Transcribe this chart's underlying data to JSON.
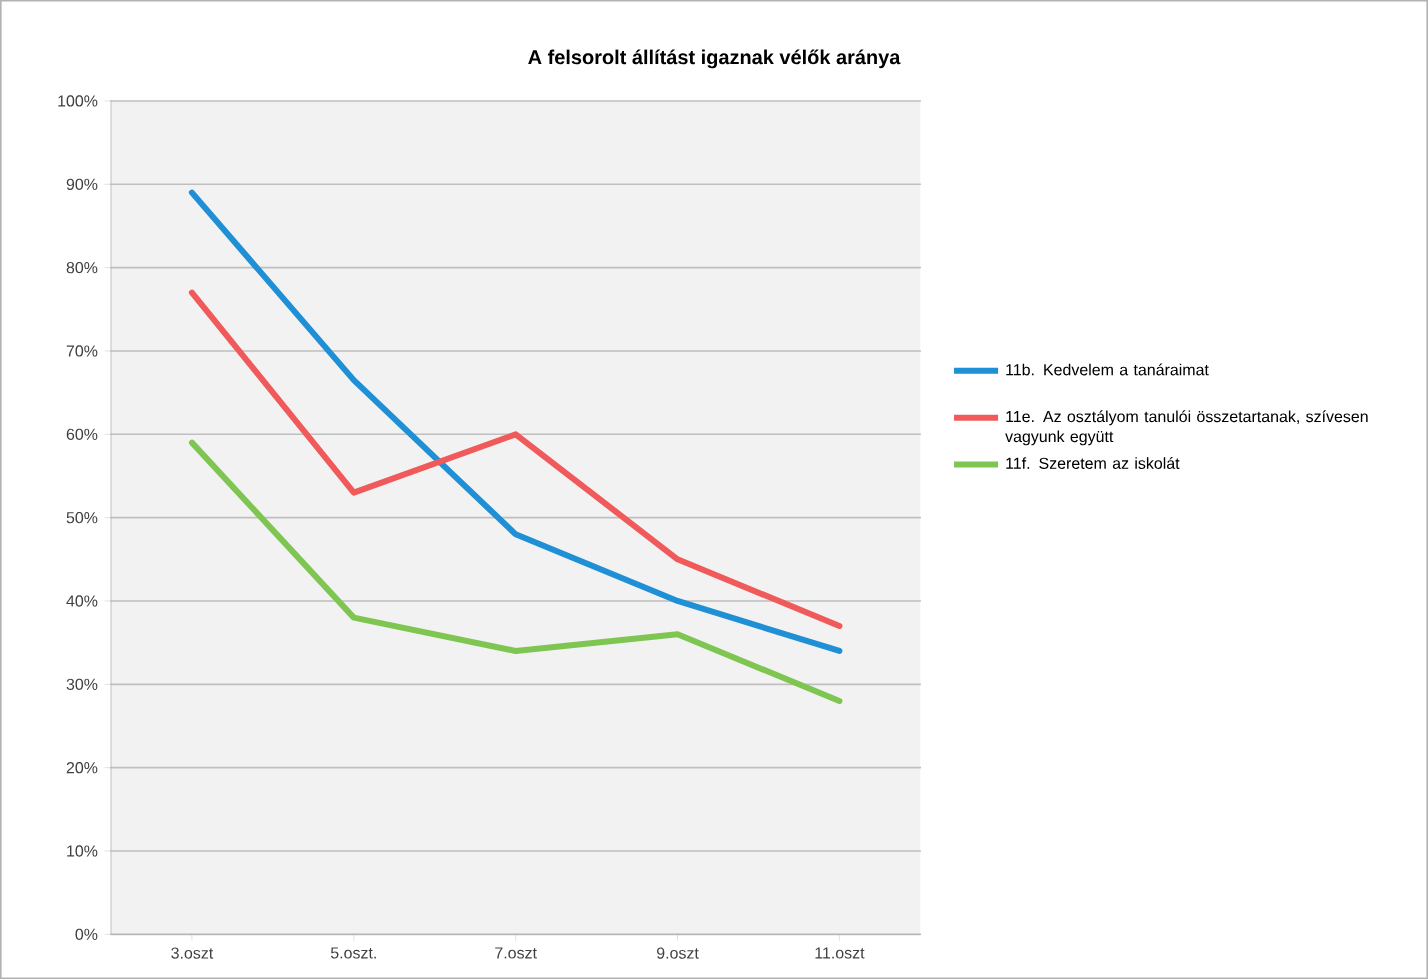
{
  "chart_data": {
    "type": "line",
    "title": "A felsorolt állítást igaznak vélők aránya",
    "categories": [
      "3.oszt",
      "5.oszt.",
      "7.oszt",
      "9.oszt",
      "11.oszt"
    ],
    "series": [
      {
        "name": "11b. Kedvelem a tanáraimat",
        "color": "#1f8fd6",
        "values": [
          89,
          66.5,
          48,
          40,
          34
        ]
      },
      {
        "name": "11e. Az osztályom tanulói összetartanak, szívesen vagyunk együtt",
        "color": "#f05a5a",
        "values": [
          77,
          53,
          60,
          45,
          37
        ]
      },
      {
        "name": "11f. Szeretem az iskolát",
        "color": "#7fc551",
        "values": [
          59,
          38,
          34,
          36,
          28
        ]
      }
    ],
    "ylim": [
      0,
      100
    ],
    "yticks": [
      {
        "value": 0,
        "label": "0%"
      },
      {
        "value": 10,
        "label": "10%"
      },
      {
        "value": 20,
        "label": "20%"
      },
      {
        "value": 30,
        "label": "30%"
      },
      {
        "value": 40,
        "label": "40%"
      },
      {
        "value": 50,
        "label": "50%"
      },
      {
        "value": 60,
        "label": "60%"
      },
      {
        "value": 70,
        "label": "70%"
      },
      {
        "value": 80,
        "label": "80%"
      },
      {
        "value": 90,
        "label": "90%"
      },
      {
        "value": 100,
        "label": "100%"
      }
    ],
    "grid": "y",
    "legend": "right",
    "marker": "none",
    "line_style": "solid"
  }
}
